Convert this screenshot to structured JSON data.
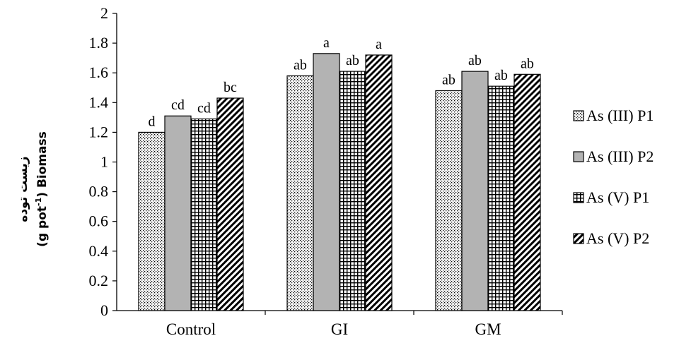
{
  "chart_data": {
    "type": "bar",
    "categories": [
      "Control",
      "GI",
      "GM"
    ],
    "series": [
      {
        "name": "As (III) P1",
        "values": [
          1.2,
          1.58,
          1.48
        ],
        "labels": [
          "d",
          "ab",
          "ab"
        ],
        "pattern": "dots"
      },
      {
        "name": "As (III) P2",
        "values": [
          1.31,
          1.73,
          1.61
        ],
        "labels": [
          "cd",
          "a",
          "ab"
        ],
        "pattern": "solid-gray"
      },
      {
        "name": "As (V) P1",
        "values": [
          1.29,
          1.61,
          1.51
        ],
        "labels": [
          "cd",
          "ab",
          "ab"
        ],
        "pattern": "grid"
      },
      {
        "name": "As (V) P2",
        "values": [
          1.43,
          1.72,
          1.59
        ],
        "labels": [
          "bc",
          "a",
          "ab"
        ],
        "pattern": "diagonal"
      }
    ],
    "ylabel_line1": "زیست توده",
    "ylabel_line2_prefix": "(g pot",
    "ylabel_line2_sup": "-1",
    "ylabel_line2_suffix": ") Biomass",
    "ylim": [
      0,
      2
    ],
    "yticks": [
      "0",
      "0.2",
      "0.4",
      "0.6",
      "0.8",
      "1",
      "1.2",
      "1.4",
      "1.6",
      "1.8",
      "2"
    ],
    "grid": false,
    "legend_position": "right",
    "colors": {
      "gray_fill": "#b3b3b3",
      "ink": "#000000"
    }
  }
}
